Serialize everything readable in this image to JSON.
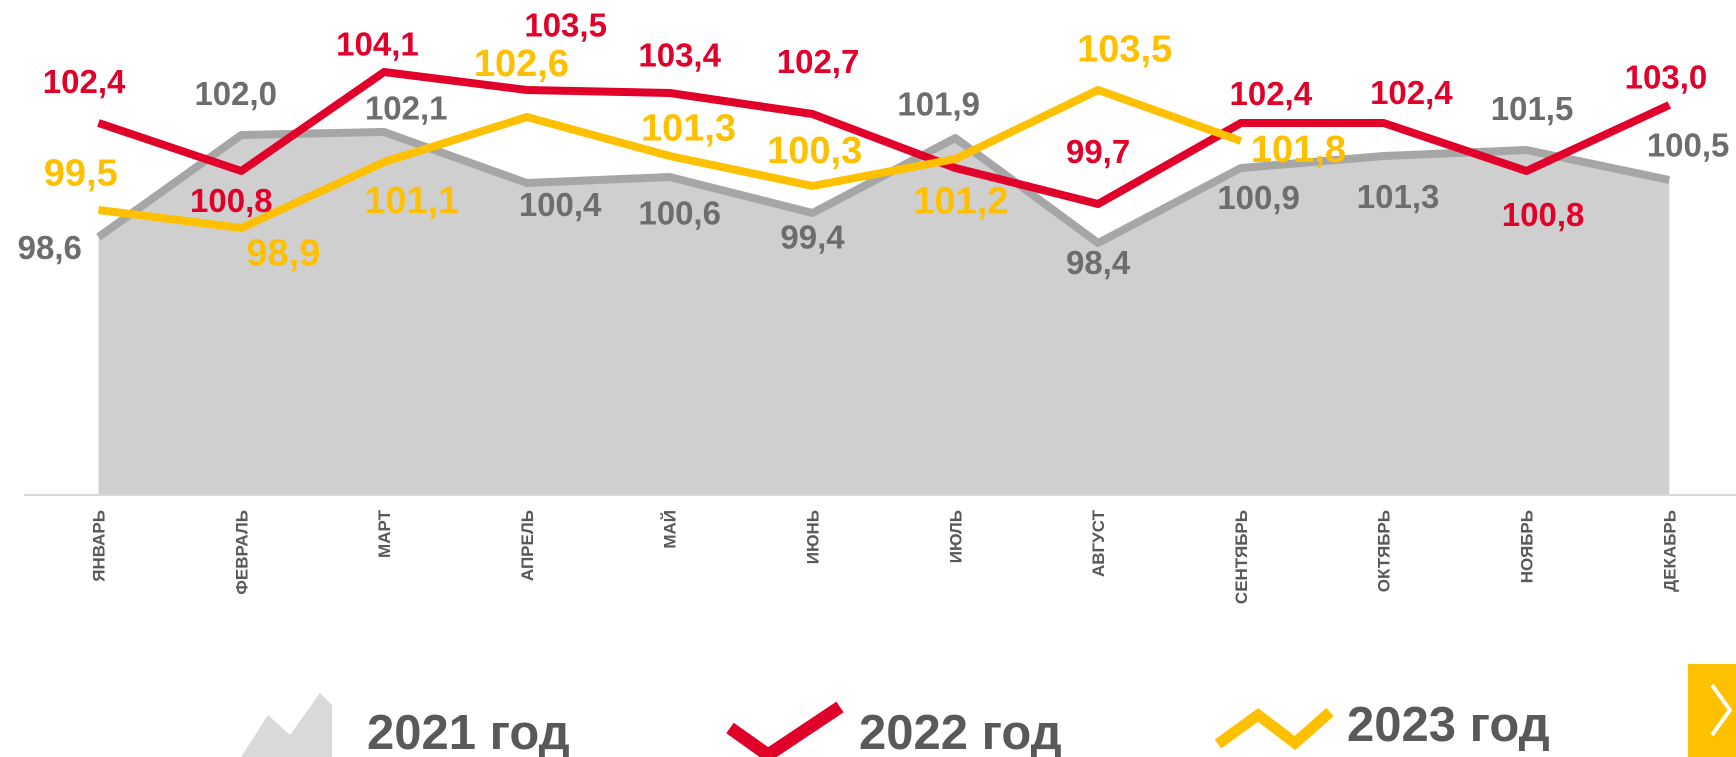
{
  "chart_data": {
    "type": "line",
    "categories": [
      "ЯНВАРЬ",
      "ФЕВРАЛЬ",
      "МАРТ",
      "АПРЕЛЬ",
      "МАЙ",
      "ИЮНЬ",
      "ИЮЛЬ",
      "АВГУСТ",
      "СЕНТЯБРЬ",
      "ОКТЯБРЬ",
      "НОЯБРЬ",
      "ДЕКАБРЬ"
    ],
    "ylim": [
      90,
      106.5
    ],
    "series": [
      {
        "name": "2021 год",
        "color": "#a6a6a6",
        "area": true,
        "values": [
          98.6,
          102.0,
          102.1,
          100.4,
          100.6,
          99.4,
          101.9,
          98.4,
          100.9,
          101.3,
          101.5,
          100.5
        ],
        "value_labels": [
          "98,6",
          "102,0",
          "102,1",
          "100,4",
          "100,6",
          "99,4",
          "101,9",
          "98,4",
          "100,9",
          "101,3",
          "101,5",
          "100,5"
        ]
      },
      {
        "name": "2022 год",
        "color": "#e0002a",
        "values": [
          102.4,
          100.8,
          104.1,
          103.5,
          103.4,
          102.7,
          100.9,
          99.7,
          102.4,
          102.4,
          100.8,
          103.0
        ],
        "value_labels": [
          "102,4",
          "100,8",
          "104,1",
          "103,5",
          "103,4",
          "102,7",
          null,
          "99,7",
          "102,4",
          "102,4",
          "100,8",
          "103,0"
        ]
      },
      {
        "name": "2023 год",
        "color": "#ffc000",
        "values": [
          99.5,
          98.9,
          101.1,
          102.6,
          101.3,
          100.3,
          101.2,
          103.5,
          101.8,
          null,
          null,
          null
        ],
        "value_labels": [
          "99,5",
          "98,9",
          "101,1",
          "102,6",
          "101,3",
          "100,3",
          "101,2",
          "103,5",
          "101,8",
          null,
          null,
          null
        ]
      }
    ]
  }
}
